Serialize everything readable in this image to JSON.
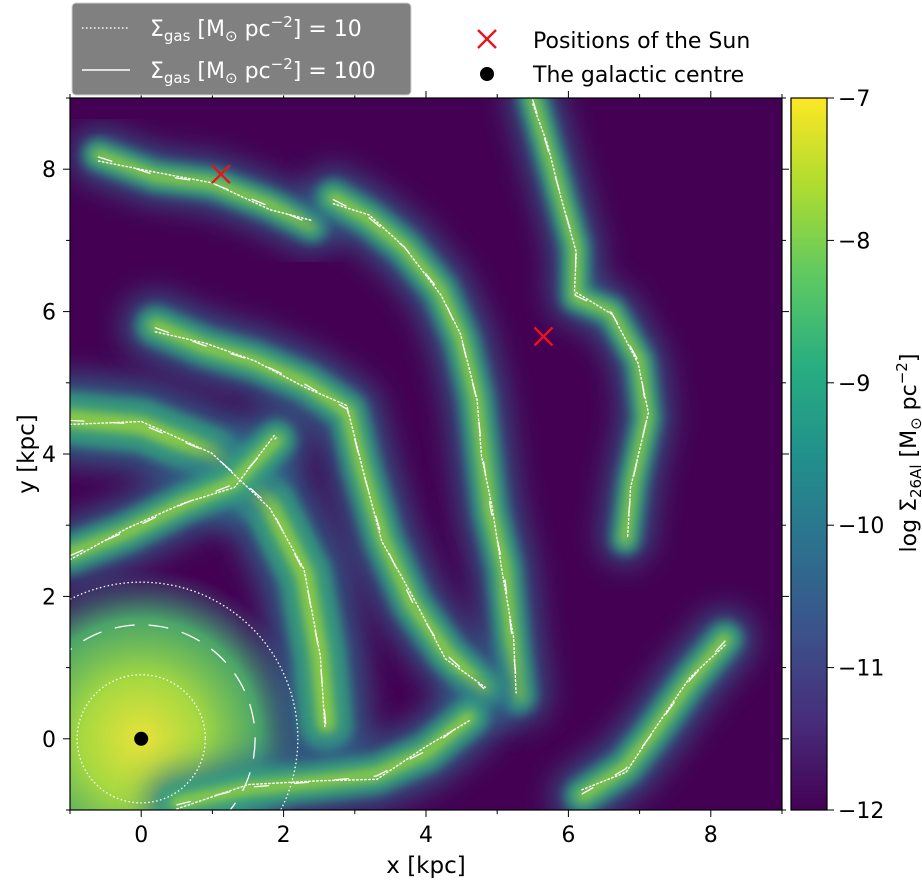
{
  "chart_data": {
    "type": "heatmap",
    "xlabel": "x [kpc]",
    "ylabel": "y [kpc]",
    "xlim": [
      -1,
      9
    ],
    "ylim": [
      -1,
      9
    ],
    "x_ticks": [
      0,
      2,
      4,
      6,
      8
    ],
    "y_ticks": [
      0,
      2,
      4,
      6,
      8
    ],
    "x_tick_labels": [
      "0",
      "2",
      "4",
      "6",
      "8"
    ],
    "y_tick_labels": [
      "0",
      "2",
      "4",
      "6",
      "8"
    ],
    "colorbar": {
      "label_text": "log Σ",
      "label_sub": "26Al",
      "label_unit_pre": " [M",
      "label_unit_odot": "⊙",
      "label_unit_post": " pc",
      "label_unit_exp": "−2",
      "label_close": "]",
      "range": [
        -12,
        -7
      ],
      "ticks": [
        -12,
        -11,
        -10,
        -9,
        -8,
        -7
      ],
      "tick_labels": [
        "−12",
        "−11",
        "−10",
        "−9",
        "−8",
        "−7"
      ],
      "colormap": "viridis"
    },
    "contours": [
      {
        "level": 10,
        "style": "dotted",
        "color": "#ffffff"
      },
      {
        "level": 100,
        "style": "solid",
        "color": "#ffffff"
      }
    ],
    "sun_positions": [
      {
        "x": 1.12,
        "y": 7.93
      },
      {
        "x": 5.65,
        "y": 5.65
      }
    ],
    "galactic_centre": {
      "x": 0,
      "y": 0
    },
    "gas_arms": [
      {
        "points": [
          [
            -0.6,
            8.2
          ],
          [
            0.2,
            7.9
          ],
          [
            1.0,
            7.8
          ],
          [
            1.8,
            7.5
          ],
          [
            2.4,
            7.2
          ]
        ],
        "width": 0.45
      },
      {
        "points": [
          [
            2.7,
            7.6
          ],
          [
            3.2,
            7.3
          ],
          [
            3.7,
            6.9
          ],
          [
            4.2,
            6.3
          ],
          [
            4.5,
            5.6
          ],
          [
            4.7,
            4.8
          ],
          [
            4.8,
            4.0
          ],
          [
            4.9,
            3.2
          ],
          [
            5.1,
            2.4
          ],
          [
            5.2,
            1.4
          ],
          [
            5.3,
            0.6
          ]
        ],
        "width": 0.5
      },
      {
        "points": [
          [
            5.5,
            9.0
          ],
          [
            5.7,
            8.3
          ],
          [
            5.9,
            7.6
          ],
          [
            6.1,
            6.9
          ],
          [
            6.1,
            6.2
          ],
          [
            6.6,
            6.0
          ],
          [
            7.0,
            5.3
          ],
          [
            7.1,
            4.5
          ],
          [
            6.9,
            3.6
          ],
          [
            6.8,
            2.8
          ]
        ],
        "width": 0.42
      },
      {
        "points": [
          [
            8.2,
            1.4
          ],
          [
            7.7,
            0.8
          ],
          [
            7.2,
            0.1
          ],
          [
            6.8,
            -0.4
          ],
          [
            6.2,
            -0.8
          ]
        ],
        "width": 0.5
      },
      {
        "points": [
          [
            -1.0,
            4.5
          ],
          [
            0.0,
            4.4
          ],
          [
            1.0,
            4.0
          ],
          [
            1.8,
            3.3
          ],
          [
            2.3,
            2.3
          ],
          [
            2.5,
            1.2
          ],
          [
            2.6,
            0.2
          ]
        ],
        "width": 0.75
      },
      {
        "points": [
          [
            0.2,
            5.8
          ],
          [
            0.9,
            5.5
          ],
          [
            1.6,
            5.3
          ],
          [
            2.3,
            5.0
          ],
          [
            2.9,
            4.6
          ],
          [
            3.1,
            3.8
          ],
          [
            3.4,
            2.8
          ],
          [
            3.8,
            1.9
          ],
          [
            4.3,
            1.2
          ],
          [
            4.8,
            0.7
          ]
        ],
        "width": 0.55
      },
      {
        "points": [
          [
            0.5,
            -0.9
          ],
          [
            1.5,
            -0.7
          ],
          [
            2.5,
            -0.6
          ],
          [
            3.3,
            -0.5
          ],
          [
            4.0,
            -0.2
          ],
          [
            4.6,
            0.3
          ]
        ],
        "width": 0.55
      },
      {
        "points": [
          [
            -1.0,
            2.6
          ],
          [
            -0.2,
            2.9
          ],
          [
            0.6,
            3.3
          ],
          [
            1.3,
            3.6
          ],
          [
            1.9,
            4.2
          ]
        ],
        "width": 0.55
      }
    ]
  },
  "legend_left": {
    "entries": [
      {
        "sym": "Σ",
        "sub": "gas",
        "unit_pre": " [M",
        "odot": "⊙",
        "unit_post": " pc",
        "exp": "−2",
        "close": "] = 10"
      },
      {
        "sym": "Σ",
        "sub": "gas",
        "unit_pre": " [M",
        "odot": "⊙",
        "unit_post": " pc",
        "exp": "−2",
        "close": "] = 100"
      }
    ]
  },
  "legend_right": {
    "entries": [
      {
        "label": "Positions of the Sun",
        "marker": "x",
        "color": "#e8141c"
      },
      {
        "label": "The galactic centre",
        "marker": "dot",
        "color": "#000000"
      }
    ]
  }
}
